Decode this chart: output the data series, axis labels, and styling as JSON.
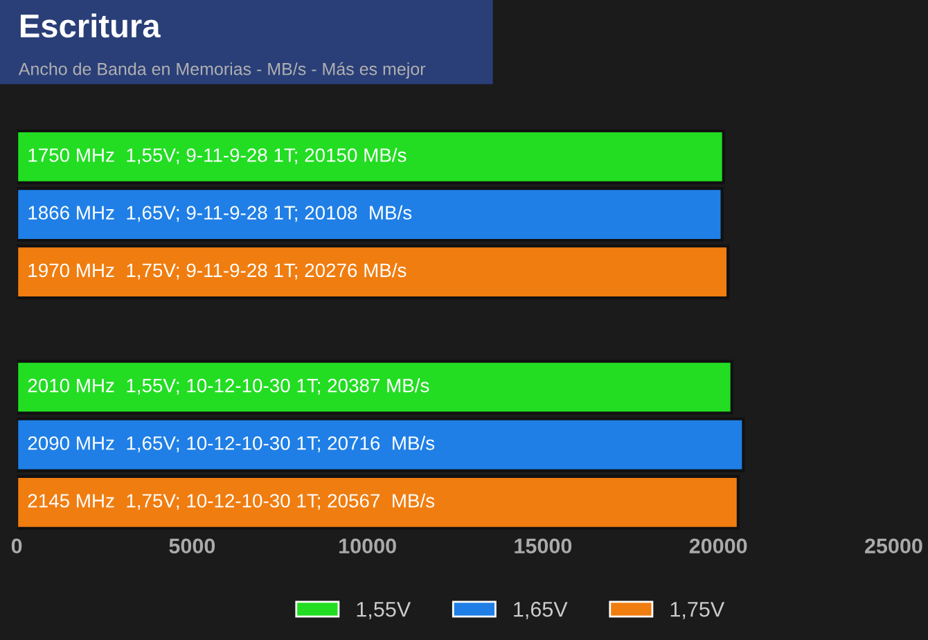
{
  "chart_data": {
    "type": "bar",
    "orientation": "horizontal",
    "title": "Escritura",
    "subtitle": "Ancho de Banda en Memorias - MB/s - Más es mejor",
    "categories": [
      "1750 MHz  1,55V; 9-11-9-28 1T; 20150 MB/s",
      "1866 MHz  1,65V; 9-11-9-28 1T; 20108  MB/s",
      "1970 MHz  1,75V; 9-11-9-28 1T; 20276 MB/s",
      null,
      "2010 MHz  1,55V; 10-12-10-30 1T; 20387 MB/s",
      "2090 MHz  1,65V; 10-12-10-30 1T; 20716  MB/s",
      "2145 MHz  1,75V; 10-12-10-30 1T; 20567  MB/s"
    ],
    "series": [
      {
        "name": "1,55V",
        "color": "#22dd22",
        "values": [
          20150,
          null,
          null,
          null,
          20387,
          null,
          null
        ]
      },
      {
        "name": "1,65V",
        "color": "#1f7fe6",
        "values": [
          null,
          20108,
          null,
          null,
          null,
          20716,
          null
        ]
      },
      {
        "name": "1,75V",
        "color": "#f07d10",
        "values": [
          null,
          null,
          20276,
          null,
          null,
          null,
          20567
        ]
      }
    ],
    "xlim": [
      0,
      25000
    ],
    "xticks": [
      0,
      5000,
      10000,
      15000,
      20000,
      25000
    ],
    "grid": false,
    "legend": "bottom",
    "tick_labels": "x"
  }
}
